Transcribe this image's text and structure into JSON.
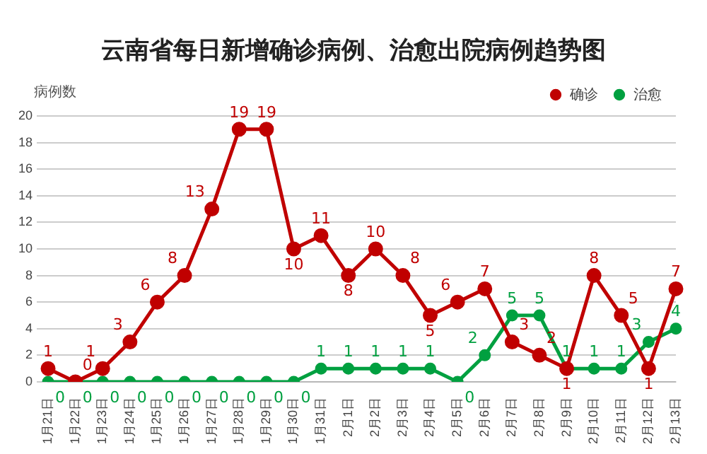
{
  "chart_data": {
    "type": "line",
    "title": "云南省每日新增确诊病例、治愈出院病例趋势图",
    "ylabel": "病例数",
    "categories": [
      "1月21日",
      "1月22日",
      "1月23日",
      "1月24日",
      "1月25日",
      "1月26日",
      "1月27日",
      "1月28日",
      "1月29日",
      "1月30日",
      "1月31日",
      "2月1日",
      "2月2日",
      "2月3日",
      "2月4日",
      "2月5日",
      "2月6日",
      "2月7日",
      "2月8日",
      "2月9日",
      "2月10日",
      "2月11日",
      "2月12日",
      "2月13日"
    ],
    "series": [
      {
        "name": "确诊",
        "color": "#c00000",
        "values": [
          1,
          0,
          1,
          3,
          6,
          8,
          13,
          19,
          19,
          10,
          11,
          8,
          10,
          8,
          5,
          6,
          7,
          3,
          2,
          1,
          8,
          5,
          1,
          7
        ]
      },
      {
        "name": "治愈",
        "color": "#00a040",
        "values": [
          0,
          0,
          0,
          0,
          0,
          0,
          0,
          0,
          0,
          0,
          1,
          1,
          1,
          1,
          1,
          0,
          2,
          5,
          5,
          1,
          1,
          1,
          3,
          4
        ]
      }
    ],
    "ylim": [
      0,
      20
    ],
    "yticks": [
      0,
      2,
      4,
      6,
      8,
      10,
      12,
      14,
      16,
      18,
      20
    ],
    "grid": "y",
    "legend": "top right",
    "marker": "circle",
    "line_style": "solid",
    "data_labels": true
  }
}
